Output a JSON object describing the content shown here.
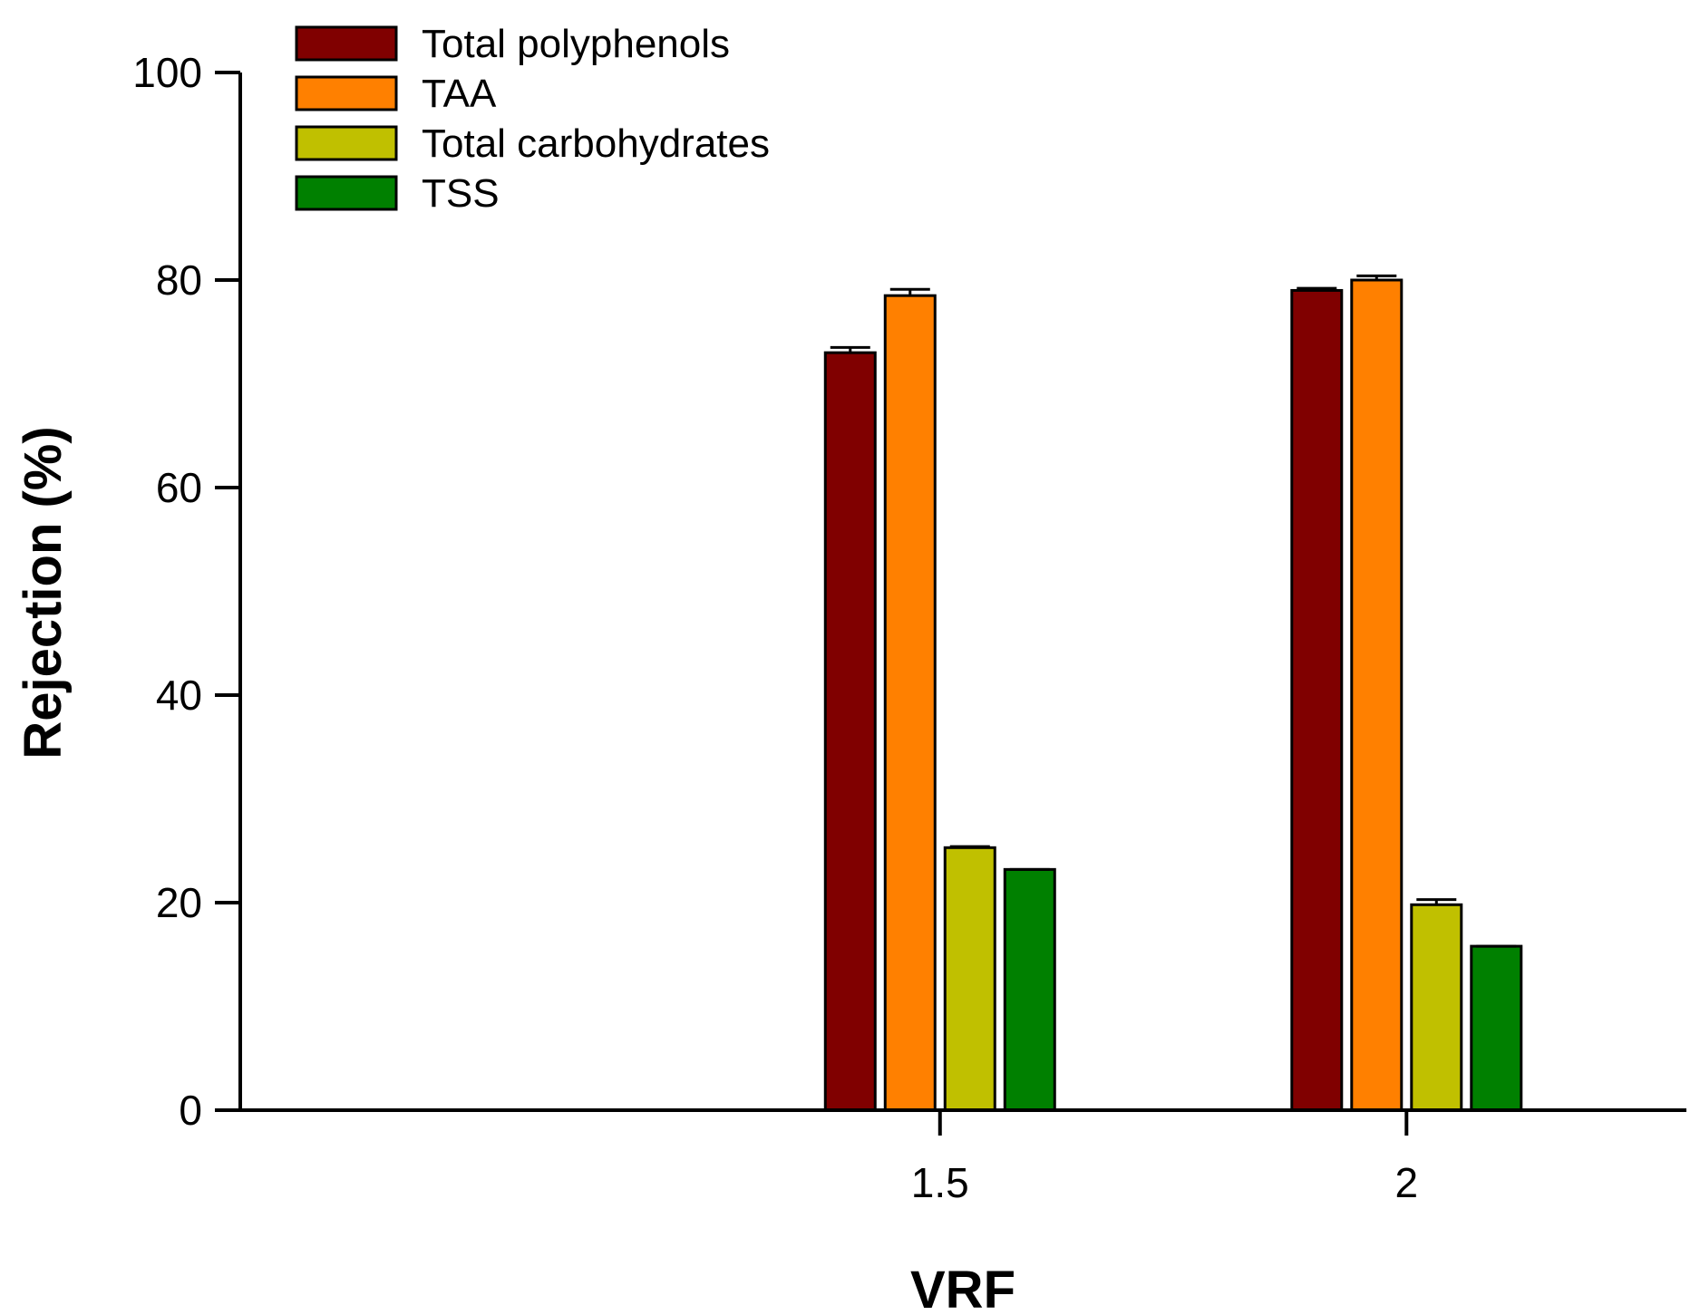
{
  "chart_data": {
    "type": "bar",
    "title": "",
    "xlabel": "VRF",
    "ylabel": "Rejection (%)",
    "ylim": [
      0,
      100
    ],
    "yticks": [
      0,
      20,
      40,
      60,
      80,
      100
    ],
    "categories": [
      "1.5",
      "2"
    ],
    "x_positions": [
      1.5,
      2
    ],
    "x_range": [
      0.75,
      2.3
    ],
    "legend_position": "top-left",
    "grid": false,
    "series": [
      {
        "name": "Total polyphenols",
        "color": "#800000",
        "values": [
          73.0,
          79.0
        ],
        "errors": [
          0.5,
          0.2
        ]
      },
      {
        "name": "TAA",
        "color": "#FF8000",
        "values": [
          78.5,
          80.0
        ],
        "errors": [
          0.6,
          0.4
        ]
      },
      {
        "name": "Total carbohydrates",
        "color": "#C0C000",
        "values": [
          25.3,
          19.8
        ],
        "errors": [
          0.1,
          0.5
        ]
      },
      {
        "name": "TSS",
        "color": "#008000",
        "values": [
          23.2,
          15.8
        ],
        "errors": [
          0.0,
          0.0
        ]
      }
    ]
  }
}
